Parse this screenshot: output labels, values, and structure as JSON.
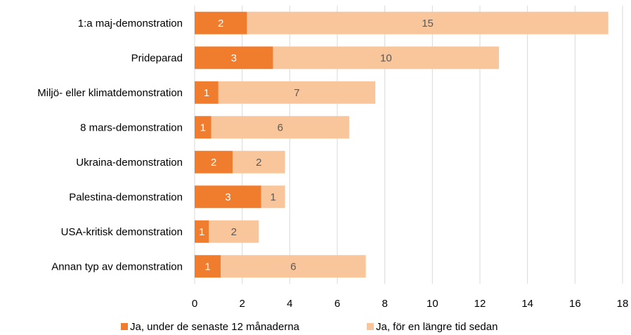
{
  "chart_data": {
    "type": "bar",
    "orientation": "horizontal",
    "stacked": true,
    "categories": [
      "1:a maj-demonstration",
      "Prideparad",
      "Miljö- eller klimatdemonstration",
      "8 mars-demonstration",
      "Ukraina-demonstration",
      "Palestina-demonstration",
      "USA-kritisk demonstration",
      "Annan typ av demonstration"
    ],
    "series": [
      {
        "name": "Ja, under de senaste 12 månaderna",
        "values": [
          2.2,
          3.3,
          1.0,
          0.7,
          1.6,
          2.8,
          0.6,
          1.1
        ],
        "labels": [
          "2",
          "3",
          "1",
          "1",
          "2",
          "3",
          "1",
          "1"
        ],
        "color": "#F07D2E",
        "label_color": "#ffffff"
      },
      {
        "name": "Ja, för en längre tid sedan",
        "values": [
          15.2,
          9.5,
          6.6,
          5.8,
          2.2,
          1.0,
          2.1,
          6.1
        ],
        "labels": [
          "15",
          "10",
          "7",
          "6",
          "2",
          "1",
          "2",
          "6"
        ],
        "color": "#F9C59A",
        "label_color": "#595959"
      }
    ],
    "xlim": [
      0,
      18
    ],
    "xticks": [
      "0",
      "2",
      "4",
      "6",
      "8",
      "10",
      "12",
      "14",
      "16",
      "18"
    ],
    "grid": true,
    "gridline_color": "#D9D9D9",
    "legend_position": "bottom"
  }
}
